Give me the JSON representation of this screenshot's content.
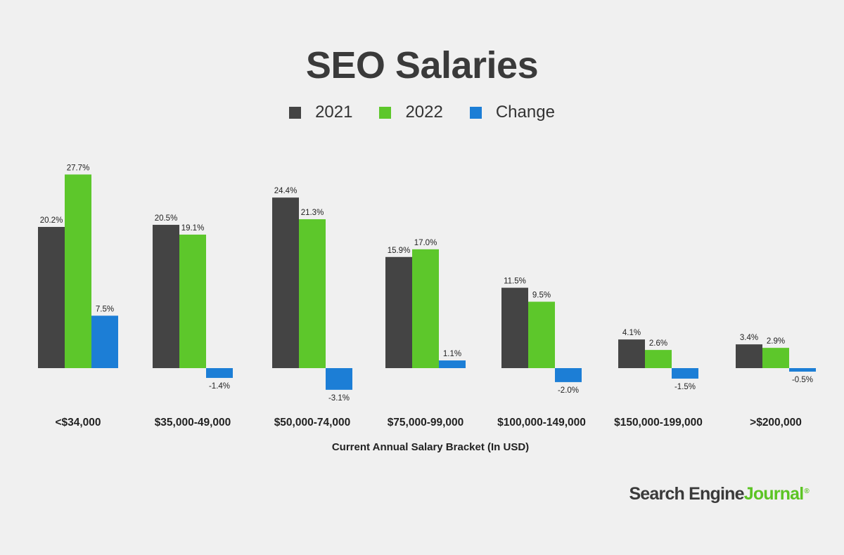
{
  "title": "SEO Salaries",
  "legend": [
    {
      "label": "2021",
      "color": "#444444"
    },
    {
      "label": "2022",
      "color": "#5dc72b"
    },
    {
      "label": "Change",
      "color": "#1c7ed6"
    }
  ],
  "x_axis_title": "Current Annual Salary Bracket (In USD)",
  "brand": {
    "part1": "Search Engine",
    "part2": "Journal",
    "mark": "®"
  },
  "chart_data": {
    "type": "bar",
    "title": "SEO Salaries",
    "xlabel": "Current Annual Salary Bracket (In USD)",
    "ylabel": "",
    "categories": [
      "<$34,000",
      "$35,000-49,000",
      "$50,000-74,000",
      "$75,000-99,000",
      "$100,000-149,000",
      "$150,000-199,000",
      ">$200,000"
    ],
    "series": [
      {
        "name": "2021",
        "color": "#444444",
        "values": [
          20.2,
          20.5,
          24.4,
          15.9,
          11.5,
          4.1,
          3.4
        ],
        "labels": [
          "20.2%",
          "20.5%",
          "24.4%",
          "15.9%",
          "11.5%",
          "4.1%",
          "3.4%"
        ]
      },
      {
        "name": "2022",
        "color": "#5dc72b",
        "values": [
          27.7,
          19.1,
          21.3,
          17.0,
          9.5,
          2.6,
          2.9
        ],
        "labels": [
          "27.7%",
          "19.1%",
          "21.3%",
          "17.0%",
          "9.5%",
          "2.6%",
          "2.9%"
        ]
      },
      {
        "name": "Change",
        "color": "#1c7ed6",
        "values": [
          7.5,
          -1.4,
          -3.1,
          1.1,
          -2.0,
          -1.5,
          -0.5
        ],
        "labels": [
          "7.5%",
          "-1.4%",
          "-3.1%",
          "1.1%",
          "-2.0%",
          "-1.5%",
          "-0.5%"
        ]
      }
    ],
    "ylim": [
      -3.1,
      27.7
    ],
    "grid": false,
    "legend_position": "top-center"
  }
}
